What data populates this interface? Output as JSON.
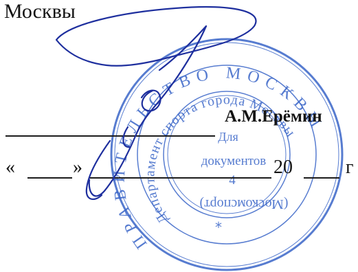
{
  "document": {
    "city_text": "Москвы",
    "signer_name": "А.М.Ерёмин",
    "date_quote_open": "«",
    "date_quote_close": "»",
    "date_century": "20",
    "date_year_suffix": "г"
  },
  "stamp": {
    "outer_ring_text": "ПРАВИТЕЛЬСТВО МОСКВЫ",
    "inner_ring_text": "Департамент спорта города Москвы",
    "center_line1": "Для",
    "center_line2": "документов",
    "center_number": "4",
    "bottom_text": "(Москомспорт)",
    "color": "#3a66c8"
  },
  "signature": {
    "color": "#1e2f9e"
  }
}
